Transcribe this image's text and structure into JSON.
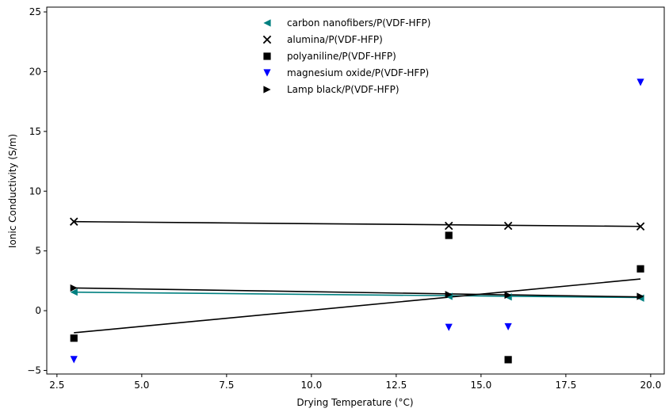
{
  "chart_data": {
    "type": "scatter",
    "xlabel": "Drying Temperature (°C)",
    "ylabel": "Ionic Conductivity (S/m)",
    "xlim": [
      2.2,
      20.4
    ],
    "ylim": [
      -5.3,
      25.4
    ],
    "xticks": [
      "2.5",
      "5.0",
      "7.5",
      "10.0",
      "12.5",
      "15.0",
      "17.5",
      "20.0"
    ],
    "yticks": [
      "−5",
      "0",
      "5",
      "10",
      "15",
      "20",
      "25"
    ],
    "grid": false,
    "legend_position": "top-center",
    "series": [
      {
        "name": "carbon nanofibers/P(VDF-HFP)",
        "marker": "triangle-left",
        "color": "#008080",
        "x": [
          3.0,
          14.05,
          15.8,
          19.7
        ],
        "y": [
          1.55,
          1.2,
          1.15,
          1.05
        ],
        "fit": {
          "x": [
            3.0,
            19.7
          ],
          "y": [
            1.55,
            1.1
          ],
          "color": "#008080"
        }
      },
      {
        "name": "alumina/P(VDF-HFP)",
        "marker": "x",
        "color": "#000000",
        "x": [
          3.0,
          14.05,
          15.8,
          19.7
        ],
        "y": [
          7.45,
          7.1,
          7.1,
          7.05
        ],
        "fit": {
          "x": [
            3.0,
            19.7
          ],
          "y": [
            7.45,
            7.05
          ],
          "color": "#000000"
        }
      },
      {
        "name": "polyaniline/P(VDF-HFP)",
        "marker": "square",
        "color": "#000000",
        "x": [
          3.0,
          14.05,
          15.8,
          19.7
        ],
        "y": [
          -2.3,
          6.3,
          -4.1,
          3.5
        ],
        "fit": {
          "x": [
            3.0,
            19.7
          ],
          "y": [
            -1.85,
            2.65
          ],
          "color": "#000000"
        }
      },
      {
        "name": "magnesium oxide/P(VDF-HFP)",
        "marker": "triangle-down",
        "color": "#0000ff",
        "x": [
          3.0,
          14.05,
          15.8,
          19.7
        ],
        "y": [
          -4.1,
          -1.4,
          -1.35,
          19.1
        ]
      },
      {
        "name": "Lamp black/P(VDF-HFP)",
        "marker": "triangle-right",
        "color": "#000000",
        "x": [
          3.0,
          14.05,
          15.8,
          19.7
        ],
        "y": [
          1.9,
          1.35,
          1.3,
          1.2
        ],
        "fit": {
          "x": [
            3.0,
            19.7
          ],
          "y": [
            1.9,
            1.15
          ],
          "color": "#000000"
        }
      }
    ]
  }
}
